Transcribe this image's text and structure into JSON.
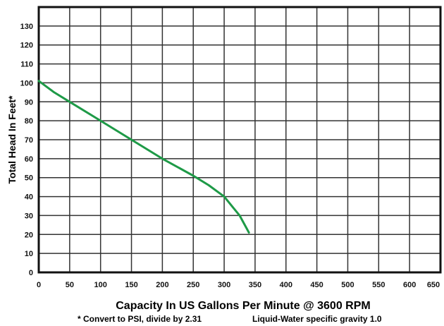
{
  "chart_data": {
    "type": "line",
    "title": "",
    "xlabel": "Capacity In US Gallons Per Minute @ 3600 RPM",
    "ylabel": "Total Head In Feet*",
    "xlim": [
      0,
      650
    ],
    "ylim": [
      0,
      140
    ],
    "x_ticks": [
      "0",
      "50",
      "100",
      "150",
      "200",
      "250",
      "300",
      "350",
      "400",
      "450",
      "500",
      "550",
      "600",
      "650"
    ],
    "y_ticks": [
      "0",
      "10",
      "20",
      "30",
      "40",
      "50",
      "60",
      "70",
      "80",
      "90",
      "100",
      "110",
      "120",
      "130"
    ],
    "grid": true,
    "series": [
      {
        "x": [
          0,
          25,
          50,
          100,
          150,
          200,
          250,
          275,
          300,
          315,
          325,
          335,
          340
        ],
        "y": [
          101,
          95,
          90,
          80,
          70,
          60,
          51,
          46,
          40,
          34,
          30,
          24,
          21
        ]
      }
    ],
    "notes": [
      "* Convert to PSI, divide by 2.31",
      "Liquid-Water specific gravity 1.0"
    ],
    "colors": {
      "line": "#1e9a47",
      "grid": "#333333",
      "frame": "#111111"
    }
  }
}
